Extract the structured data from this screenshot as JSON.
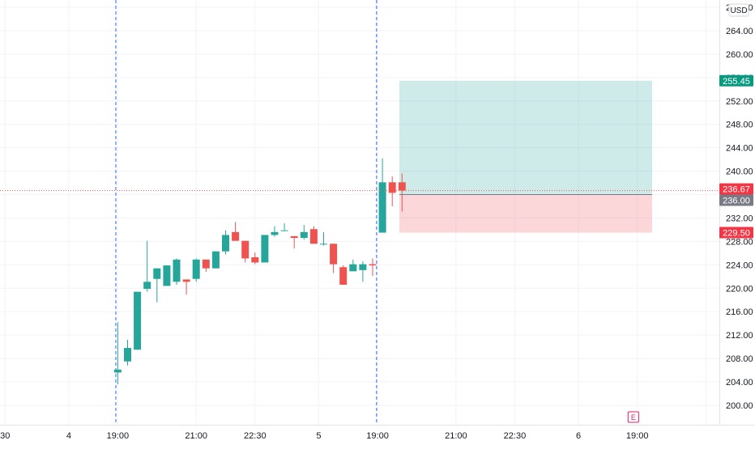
{
  "chart_data": {
    "type": "candlestick",
    "currency": "USD",
    "y_axis": {
      "ticks": [
        200,
        204,
        208,
        212,
        216,
        220,
        224,
        228,
        232,
        236,
        240,
        244,
        248,
        252,
        256,
        260,
        264,
        268
      ],
      "tick_labels": [
        "200.00",
        "204.00",
        "208.00",
        "212.00",
        "216.00",
        "220.00",
        "224.00",
        "228.00",
        "232.00",
        "236.00",
        "240.00",
        "244.00",
        "248.00",
        "252.00",
        "256.00",
        "260.00",
        "264.00",
        "268.00"
      ],
      "range": [
        197,
        270
      ],
      "position": "right"
    },
    "x_axis": {
      "tick_labels": [
        {
          "text": "30",
          "bar": -11.5
        },
        {
          "text": "4",
          "bar": -5
        },
        {
          "text": "19:00",
          "bar": 0
        },
        {
          "text": "21:00",
          "bar": 8
        },
        {
          "text": "22:30",
          "bar": 14
        },
        {
          "text": "5",
          "bar": 20.5
        },
        {
          "text": "19:00",
          "bar": 26.5
        },
        {
          "text": "21:00",
          "bar": 34.5
        },
        {
          "text": "22:30",
          "bar": 40.5
        },
        {
          "text": "6",
          "bar": 47
        },
        {
          "text": "19:00",
          "bar": 53
        },
        {
          "text": "",
          "bar": 60
        }
      ],
      "session_breaks_bar": [
        -0.2,
        26.4
      ]
    },
    "grid": true,
    "candles": [
      {
        "o": 205.6,
        "h": 214.2,
        "l": 203.6,
        "c": 206.1
      },
      {
        "o": 207.5,
        "h": 211.2,
        "l": 206.8,
        "c": 209.8
      },
      {
        "o": 209.5,
        "h": 219.4,
        "l": 209.5,
        "c": 219.4
      },
      {
        "o": 219.9,
        "h": 228.1,
        "l": 219.4,
        "c": 221.1
      },
      {
        "o": 221.6,
        "h": 223.4,
        "l": 217.6,
        "c": 223.4
      },
      {
        "o": 220.4,
        "h": 223.9,
        "l": 220.4,
        "c": 223.9
      },
      {
        "o": 221.1,
        "h": 225.1,
        "l": 220.6,
        "c": 224.9
      },
      {
        "o": 221.5,
        "h": 221.5,
        "l": 218.9,
        "c": 221.1
      },
      {
        "o": 221.6,
        "h": 225.1,
        "l": 221.1,
        "c": 224.9
      },
      {
        "o": 224.9,
        "h": 224.9,
        "l": 222.8,
        "c": 223.4
      },
      {
        "o": 223.4,
        "h": 226.3,
        "l": 223.4,
        "c": 226.3
      },
      {
        "o": 226.3,
        "h": 229.9,
        "l": 225.8,
        "c": 229.1
      },
      {
        "o": 229.6,
        "h": 231.3,
        "l": 228.5,
        "c": 228.1
      },
      {
        "o": 228.1,
        "h": 228.1,
        "l": 224.4,
        "c": 225.1
      },
      {
        "o": 225.3,
        "h": 226.1,
        "l": 224.1,
        "c": 224.4
      },
      {
        "o": 224.4,
        "h": 229.1,
        "l": 224.4,
        "c": 229.1
      },
      {
        "o": 229.1,
        "h": 230.6,
        "l": 228.8,
        "c": 229.6
      },
      {
        "o": 229.9,
        "h": 231.1,
        "l": 229.9,
        "c": 229.9
      },
      {
        "o": 228.9,
        "h": 228.9,
        "l": 226.8,
        "c": 228.6
      },
      {
        "o": 228.6,
        "h": 230.8,
        "l": 228.3,
        "c": 229.6
      },
      {
        "o": 230.1,
        "h": 230.6,
        "l": 227.8,
        "c": 227.6
      },
      {
        "o": 227.6,
        "h": 229.6,
        "l": 227.3,
        "c": 227.6
      },
      {
        "o": 227.6,
        "h": 227.6,
        "l": 222.6,
        "c": 224.1
      },
      {
        "o": 223.6,
        "h": 223.9,
        "l": 220.6,
        "c": 220.6
      },
      {
        "o": 222.9,
        "h": 224.9,
        "l": 222.9,
        "c": 224.1
      },
      {
        "o": 223.1,
        "h": 224.6,
        "l": 221.1,
        "c": 224.1
      },
      {
        "o": 224.1,
        "h": 225.1,
        "l": 222.1,
        "c": 223.9
      },
      {
        "o": 229.5,
        "h": 242.2,
        "l": 229.5,
        "c": 238.1
      },
      {
        "o": 238.1,
        "h": 239.1,
        "l": 234.0,
        "c": 236.3
      },
      {
        "o": 238.1,
        "h": 239.6,
        "l": 233.1,
        "c": 236.7
      }
    ],
    "position": {
      "type": "long",
      "entry": 236.0,
      "target": 255.45,
      "stop": 229.5
    },
    "last_price": 236.67,
    "price_labels": [
      {
        "value": 255.45,
        "text": "255.45",
        "color": "#089981"
      },
      {
        "value": 236.67,
        "text": "236.67",
        "color": "#f23645"
      },
      {
        "value": 236.0,
        "text": "236.00",
        "color": "#787b86"
      },
      {
        "value": 229.5,
        "text": "229.50",
        "color": "#f23645"
      }
    ],
    "event_marker": {
      "text": "E",
      "bar": 52.6
    },
    "colors": {
      "up": "#26a69a",
      "down": "#ef5350",
      "grid": "#f0f3fa",
      "axis_text": "#131722",
      "session_line": "#2962ff",
      "profit_zone": "#26a69a",
      "loss_zone": "#f23645"
    }
  }
}
